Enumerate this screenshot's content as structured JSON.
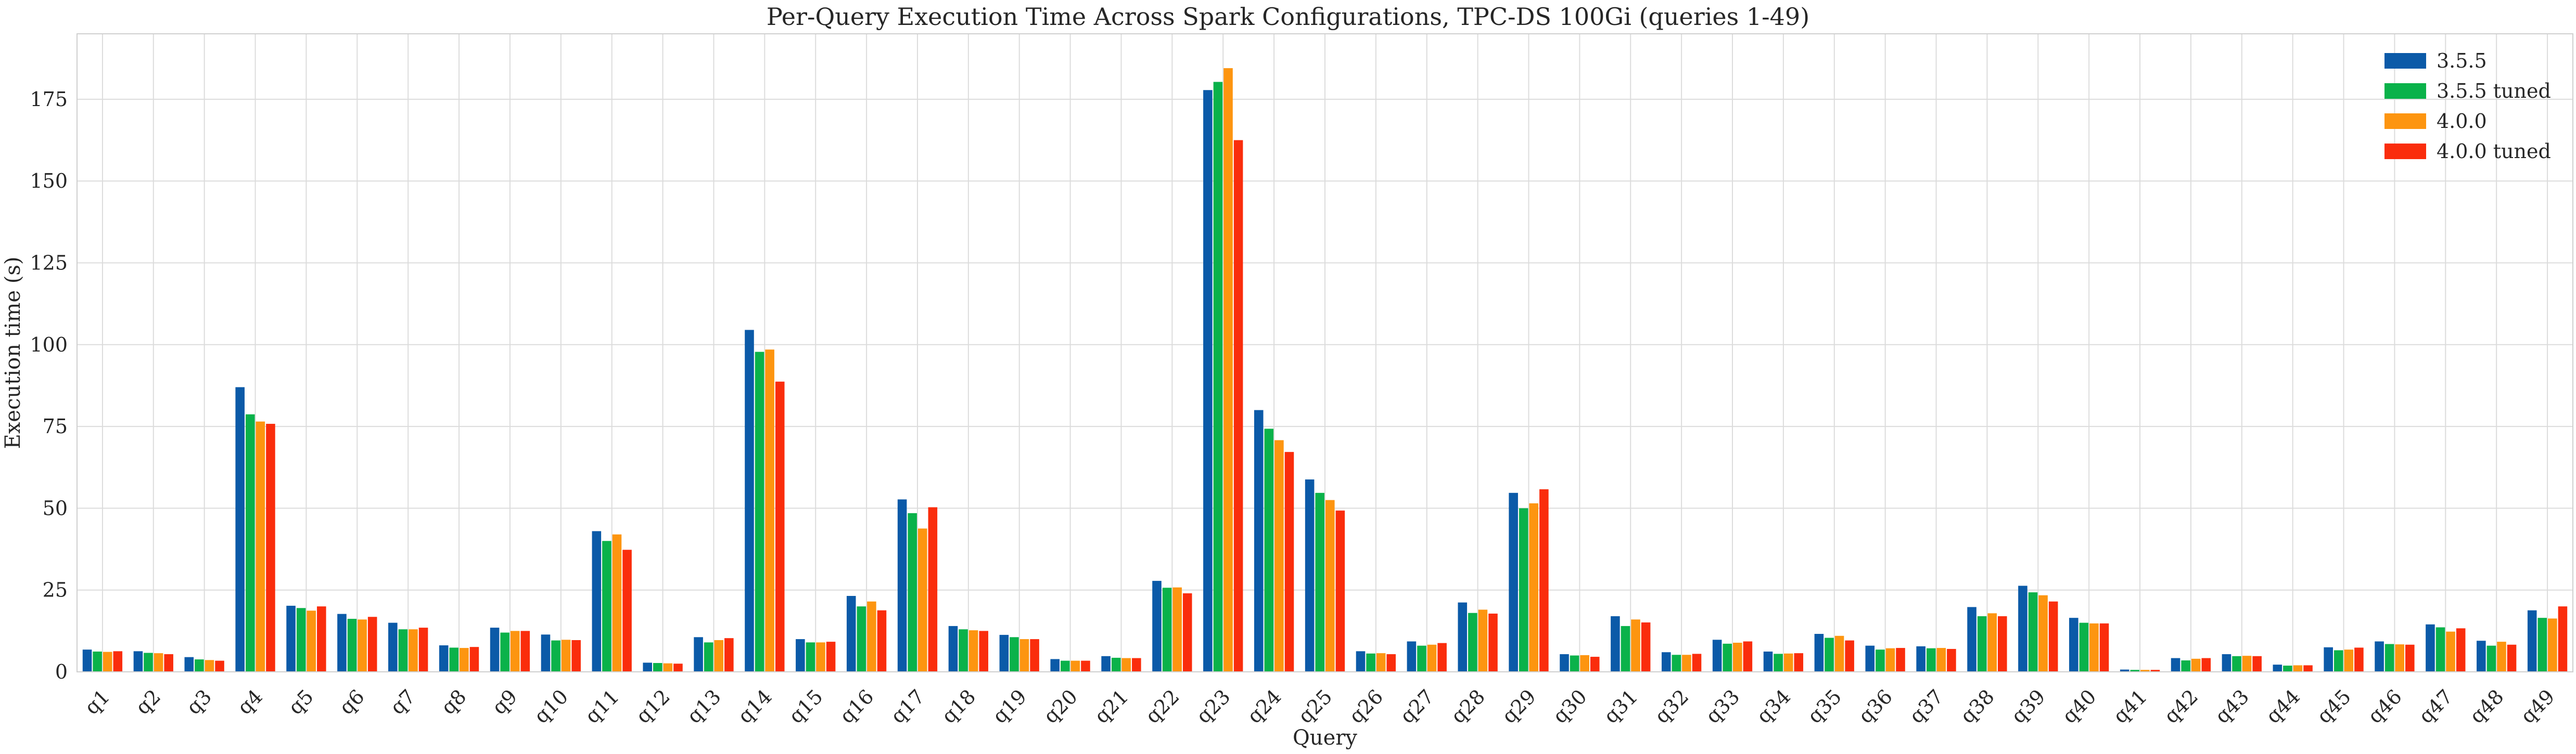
{
  "chart_data": {
    "type": "bar",
    "title": "Per-Query Execution Time Across Spark Configurations, TPC-DS 100Gi (queries 1-49)",
    "xlabel": "Query",
    "ylabel": "Execution time (s)",
    "ylim": [
      0,
      195
    ],
    "yticks": [
      0,
      25,
      50,
      75,
      100,
      125,
      150,
      175
    ],
    "grid": true,
    "legend_position": "top-right",
    "categories": [
      "q1",
      "q2",
      "q3",
      "q4",
      "q5",
      "q6",
      "q7",
      "q8",
      "q9",
      "q10",
      "q11",
      "q12",
      "q13",
      "q14",
      "q15",
      "q16",
      "q17",
      "q18",
      "q19",
      "q20",
      "q21",
      "q22",
      "q23",
      "q24",
      "q25",
      "q26",
      "q27",
      "q28",
      "q29",
      "q30",
      "q31",
      "q32",
      "q33",
      "q34",
      "q35",
      "q36",
      "q37",
      "q38",
      "q39",
      "q40",
      "q41",
      "q42",
      "q43",
      "q44",
      "q45",
      "q46",
      "q47",
      "q48",
      "q49"
    ],
    "series": [
      {
        "name": "3.5.5",
        "color": "#0b5aa8",
        "values": [
          6.8,
          6.3,
          4.5,
          87.0,
          20.2,
          17.7,
          15.0,
          8.1,
          13.5,
          11.4,
          43.0,
          2.8,
          10.6,
          104.5,
          10.0,
          23.2,
          52.7,
          14.0,
          11.3,
          3.9,
          4.8,
          27.8,
          177.8,
          80.0,
          58.8,
          6.3,
          9.3,
          21.2,
          54.7,
          5.4,
          17.0,
          6.0,
          9.8,
          6.2,
          11.6,
          8.0,
          7.8,
          19.8,
          26.3,
          16.5,
          0.7,
          4.2,
          5.4,
          2.2,
          7.5,
          9.3,
          14.5,
          9.5,
          18.8
        ]
      },
      {
        "name": "3.5.5 tuned",
        "color": "#0ab24a",
        "values": [
          6.2,
          5.8,
          3.8,
          78.7,
          19.5,
          16.2,
          13.0,
          7.4,
          12.0,
          9.6,
          40.0,
          2.7,
          9.0,
          97.8,
          9.0,
          20.0,
          48.5,
          13.0,
          10.6,
          3.4,
          4.3,
          25.7,
          180.3,
          74.3,
          54.7,
          5.6,
          8.0,
          18.0,
          50.0,
          5.0,
          14.0,
          5.2,
          8.6,
          5.5,
          10.4,
          6.8,
          7.2,
          17.0,
          24.3,
          15.0,
          0.6,
          3.5,
          4.8,
          1.9,
          6.6,
          8.5,
          13.6,
          8.0,
          16.5
        ]
      },
      {
        "name": "4.0.0",
        "color": "#fd9510",
        "values": [
          6.1,
          5.7,
          3.6,
          76.5,
          18.7,
          16.0,
          13.0,
          7.3,
          12.5,
          9.8,
          42.0,
          2.6,
          9.7,
          98.5,
          9.0,
          21.5,
          43.8,
          12.7,
          10.0,
          3.4,
          4.2,
          25.8,
          184.5,
          70.8,
          52.5,
          5.7,
          8.3,
          19.0,
          51.5,
          5.1,
          16.0,
          5.2,
          8.9,
          5.6,
          11.0,
          7.2,
          7.3,
          17.9,
          23.4,
          14.8,
          0.6,
          4.0,
          4.9,
          2.0,
          6.8,
          8.4,
          12.3,
          9.2,
          16.3
        ]
      },
      {
        "name": "4.0.0 tuned",
        "color": "#fa2d0c",
        "values": [
          6.3,
          5.4,
          3.4,
          75.8,
          20.0,
          16.8,
          13.5,
          7.6,
          12.5,
          9.7,
          37.3,
          2.5,
          10.3,
          88.7,
          9.2,
          18.8,
          50.3,
          12.5,
          10.0,
          3.4,
          4.2,
          24.0,
          162.5,
          67.2,
          49.3,
          5.4,
          8.8,
          17.8,
          55.8,
          4.6,
          15.1,
          5.5,
          9.3,
          5.7,
          9.6,
          7.3,
          7.0,
          17.0,
          21.5,
          14.8,
          0.6,
          4.2,
          4.8,
          2.0,
          7.4,
          8.3,
          13.3,
          8.3,
          20.0
        ]
      }
    ]
  }
}
